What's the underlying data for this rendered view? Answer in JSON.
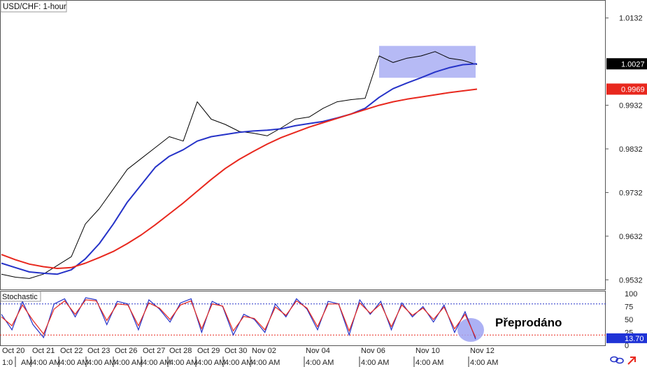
{
  "chart_data": {
    "type": "line",
    "instrument": "USD/CHF: 1-hour",
    "price_panel": {
      "ylim": [
        0.951,
        1.017
      ],
      "tick_labels": [
        "1.0132",
        "1.0027",
        "0.9969",
        "0.9932",
        "0.9832",
        "0.9732",
        "0.9632",
        "0.9532"
      ],
      "ticks": [
        1.0132,
        0.9932,
        0.9832,
        0.9732,
        0.9632,
        0.9532
      ],
      "current_price": {
        "value": 1.0027,
        "label": "1.0027"
      },
      "ma_red_last": {
        "value": 0.9969,
        "label": "0.9969"
      },
      "x": [
        0,
        20,
        40,
        60,
        80,
        100,
        120,
        140,
        160,
        180,
        200,
        220,
        240,
        260,
        280,
        300,
        320,
        340,
        360,
        380,
        400,
        420,
        440,
        460,
        480,
        500,
        520,
        540,
        560,
        580,
        600,
        620,
        640,
        660,
        680
      ],
      "series": [
        {
          "color": "#000000",
          "values": [
            0.9545,
            0.9538,
            0.9535,
            0.9545,
            0.9565,
            0.9585,
            0.966,
            0.9695,
            0.974,
            0.9785,
            0.981,
            0.9835,
            0.986,
            0.985,
            0.994,
            0.99,
            0.9888,
            0.9872,
            0.9868,
            0.9862,
            0.988,
            0.99,
            0.9905,
            0.9925,
            0.994,
            0.9945,
            0.9948,
            1.0045,
            1.003,
            1.004,
            1.0045,
            1.0055,
            1.004,
            1.0035,
            1.0025
          ]
        },
        {
          "color": "#2633c8",
          "values": [
            0.957,
            0.956,
            0.955,
            0.9547,
            0.9545,
            0.9555,
            0.958,
            0.9615,
            0.966,
            0.971,
            0.975,
            0.979,
            0.9815,
            0.983,
            0.985,
            0.986,
            0.9865,
            0.987,
            0.9873,
            0.9875,
            0.9878,
            0.9885,
            0.989,
            0.9895,
            0.9903,
            0.9912,
            0.9925,
            0.995,
            0.997,
            0.9983,
            0.9995,
            1.0008,
            1.0018,
            1.0025,
            1.0027
          ]
        },
        {
          "color": "#e8281e",
          "values": [
            0.959,
            0.9578,
            0.9568,
            0.9562,
            0.9558,
            0.956,
            0.957,
            0.9583,
            0.9597,
            0.9615,
            0.9635,
            0.9658,
            0.9683,
            0.9708,
            0.9735,
            0.9762,
            0.9787,
            0.9808,
            0.9826,
            0.9843,
            0.9858,
            0.987,
            0.9882,
            0.9892,
            0.9902,
            0.9912,
            0.9922,
            0.9932,
            0.994,
            0.9946,
            0.9951,
            0.9956,
            0.9961,
            0.9965,
            0.9969
          ]
        }
      ]
    },
    "stochastic_panel": {
      "title": "Stochastic",
      "ylim": [
        0,
        100
      ],
      "tick_labels": [
        "100",
        "75",
        "50",
        "25",
        "0"
      ],
      "ticks": [
        100,
        75,
        50,
        25,
        0
      ],
      "levels": [
        80,
        20
      ],
      "current_value": {
        "value": 13.7,
        "label": "13.70"
      },
      "annotation": "Přeprodáno",
      "x": [
        0,
        15,
        30,
        45,
        60,
        75,
        90,
        105,
        120,
        135,
        150,
        165,
        180,
        195,
        210,
        225,
        240,
        255,
        270,
        285,
        300,
        315,
        330,
        345,
        360,
        375,
        390,
        405,
        420,
        435,
        450,
        465,
        480,
        495,
        510,
        525,
        540,
        555,
        570,
        585,
        600,
        615,
        630,
        645,
        660,
        675
      ],
      "series": [
        {
          "color": "#2633c8",
          "values": [
            60,
            30,
            85,
            40,
            15,
            80,
            90,
            55,
            92,
            88,
            40,
            85,
            80,
            30,
            88,
            70,
            45,
            82,
            90,
            25,
            85,
            75,
            20,
            60,
            50,
            25,
            80,
            55,
            90,
            70,
            30,
            85,
            80,
            20,
            88,
            60,
            85,
            30,
            82,
            55,
            75,
            45,
            78,
            25,
            65,
            12
          ]
        },
        {
          "color": "#e8281e",
          "values": [
            55,
            38,
            78,
            48,
            22,
            70,
            86,
            60,
            88,
            86,
            48,
            80,
            78,
            38,
            82,
            72,
            50,
            78,
            86,
            32,
            80,
            76,
            28,
            56,
            52,
            30,
            74,
            58,
            86,
            72,
            36,
            80,
            80,
            28,
            82,
            62,
            80,
            36,
            78,
            58,
            72,
            50,
            74,
            32,
            60,
            15
          ]
        }
      ]
    },
    "x_axis": {
      "dates": [
        "Oct 20",
        "Oct 21",
        "Oct 22",
        "Oct 23",
        "Oct 26",
        "Oct 27",
        "Oct 28",
        "Oct 29",
        "Oct 30",
        "Nov 02",
        "Nov 04",
        "Nov 06",
        "Nov 10",
        "Nov 12"
      ],
      "times": [
        "1:0",
        "AM",
        "4:00 AM",
        "4:00 AM",
        "4:00 AM",
        "4:00 AM",
        "4:00 AM",
        "4:00 AM",
        "4:00 AM",
        "4:00 AM",
        "4:00 AM",
        "4:00 AM",
        "4:00 AM",
        "4:00 AM",
        "4:00 AM"
      ]
    },
    "highlight_box": {
      "color": "#9da3f2"
    },
    "oversold_circle": {
      "color": "#9da3f2"
    }
  }
}
